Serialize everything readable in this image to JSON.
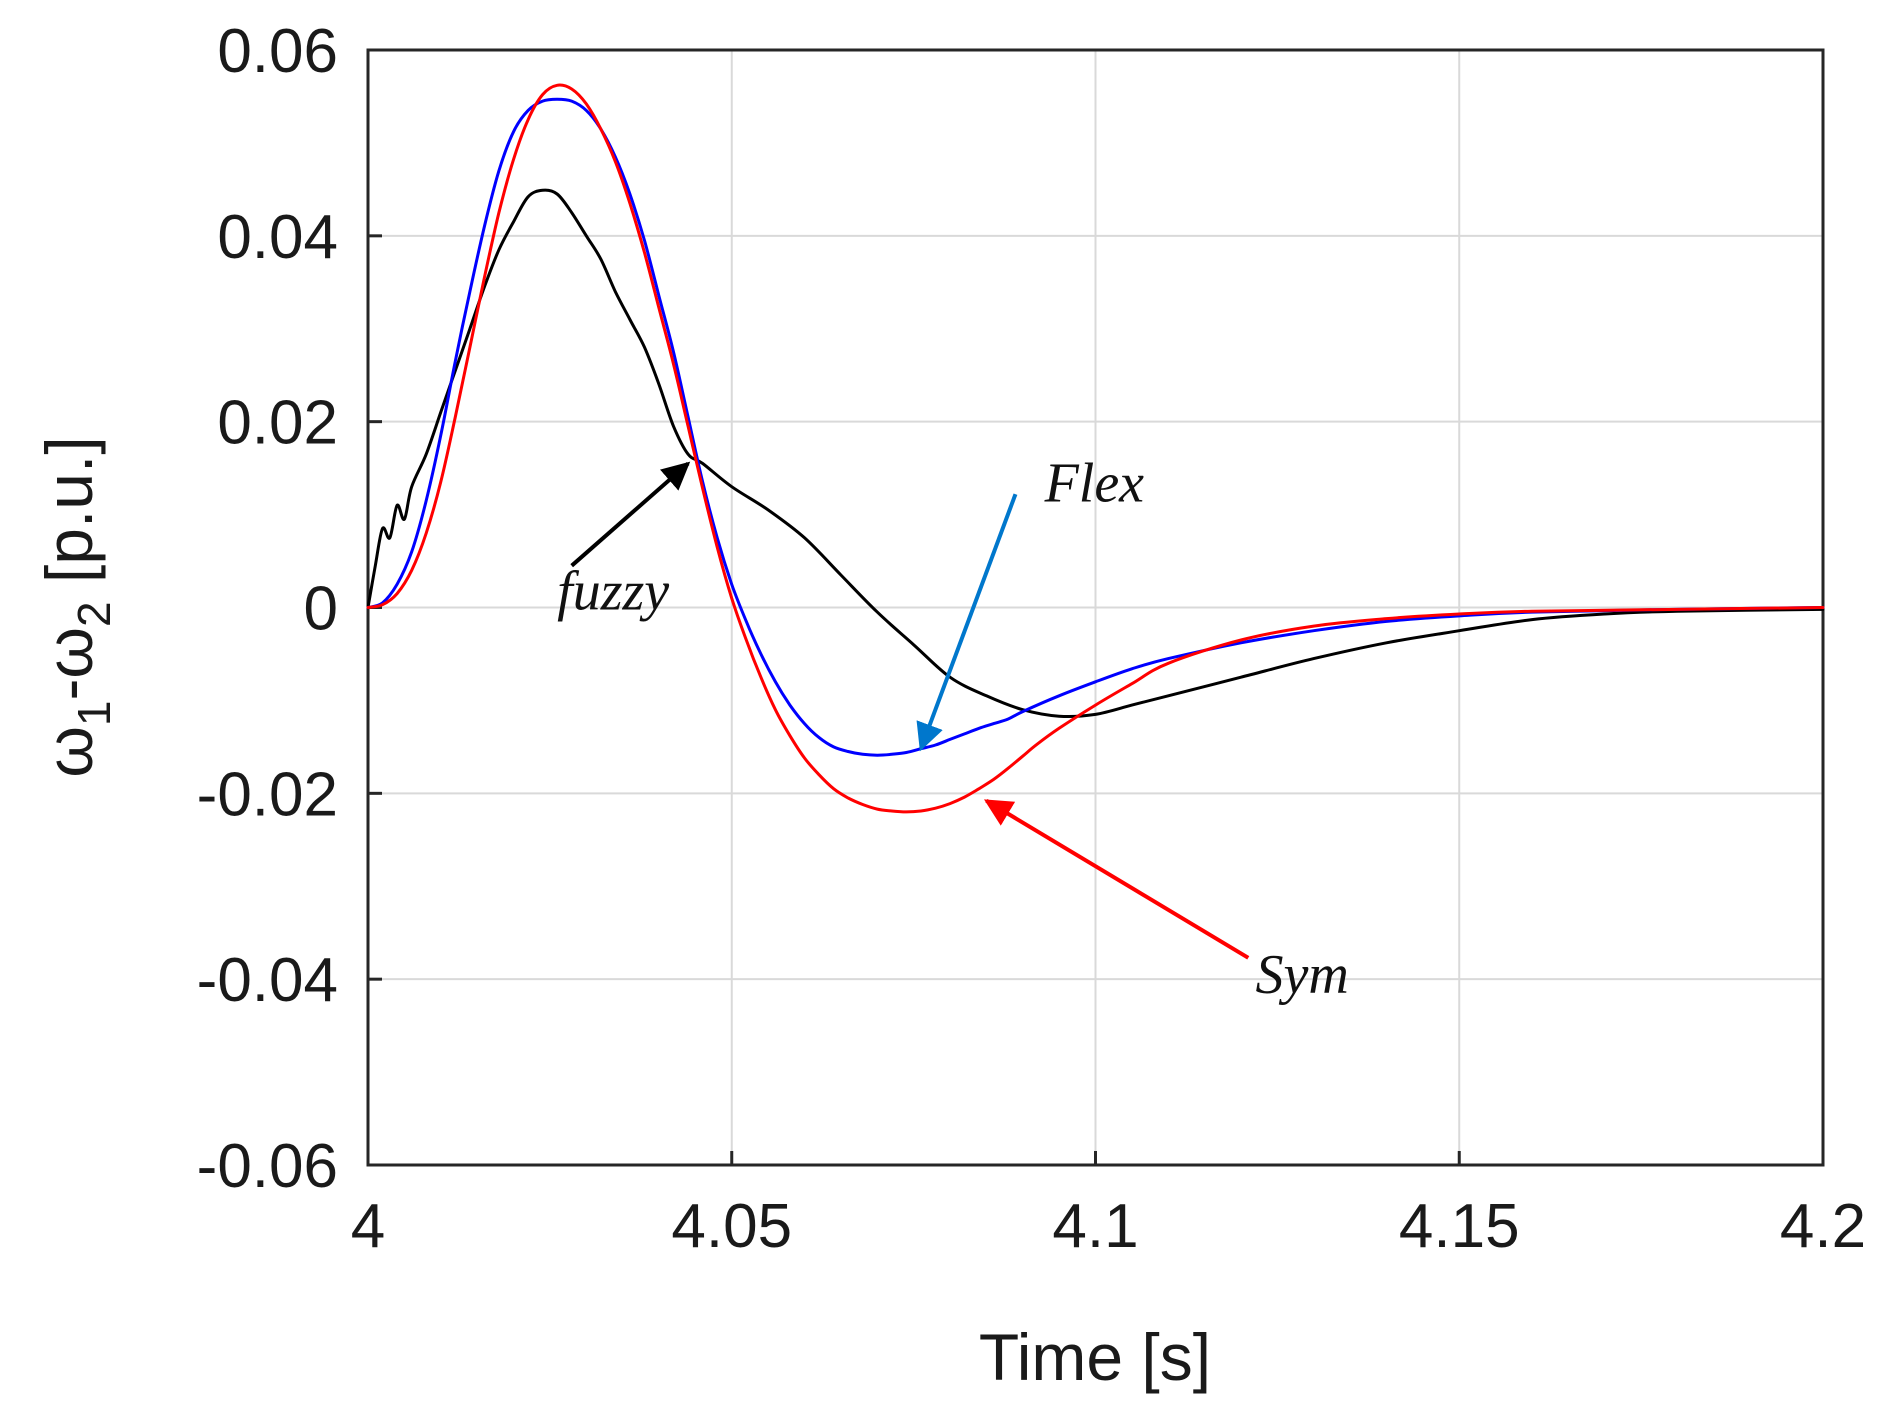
{
  "chart_data": {
    "type": "line",
    "title": "",
    "xlabel": "Time [s]",
    "ylabel": "ω1-ω2 [p.u.]",
    "xlim": [
      4,
      4.2
    ],
    "ylim": [
      -0.06,
      0.06
    ],
    "grid": true,
    "x_ticks": [
      4,
      4.05,
      4.1,
      4.15,
      4.2
    ],
    "x_tick_labels": [
      "4",
      "4.05",
      "4.1",
      "4.15",
      "4.2"
    ],
    "y_ticks": [
      -0.06,
      -0.04,
      -0.02,
      0,
      0.02,
      0.04,
      0.06
    ],
    "y_tick_labels": [
      "-0.06",
      "-0.04",
      "-0.02",
      "0",
      "0.02",
      "0.04",
      "0.06"
    ],
    "series": [
      {
        "name": "fuzzy",
        "color": "#000000",
        "x": [
          4.0,
          4.001,
          4.002,
          4.003,
          4.004,
          4.005,
          4.006,
          4.008,
          4.01,
          4.012,
          4.014,
          4.016,
          4.018,
          4.02,
          4.022,
          4.024,
          4.026,
          4.028,
          4.03,
          4.032,
          4.034,
          4.036,
          4.038,
          4.04,
          4.042,
          4.044,
          4.046,
          4.05,
          4.055,
          4.06,
          4.065,
          4.07,
          4.075,
          4.08,
          4.085,
          4.09,
          4.095,
          4.1,
          4.105,
          4.11,
          4.12,
          4.13,
          4.14,
          4.15,
          4.16,
          4.17,
          4.18,
          4.2
        ],
        "y": [
          0.0,
          0.0045,
          0.0085,
          0.0075,
          0.011,
          0.0095,
          0.013,
          0.0165,
          0.021,
          0.0255,
          0.03,
          0.0345,
          0.0385,
          0.0415,
          0.0442,
          0.0449,
          0.0445,
          0.0425,
          0.04,
          0.0375,
          0.034,
          0.031,
          0.028,
          0.024,
          0.0195,
          0.0165,
          0.0155,
          0.013,
          0.0105,
          0.0075,
          0.0035,
          -0.0005,
          -0.004,
          -0.0075,
          -0.0095,
          -0.011,
          -0.0117,
          -0.0115,
          -0.0105,
          -0.0095,
          -0.0075,
          -0.0055,
          -0.0038,
          -0.0025,
          -0.0013,
          -0.0007,
          -0.0004,
          -0.0002
        ]
      },
      {
        "name": "Flex",
        "color": "#0000ff",
        "x": [
          4.0,
          4.002,
          4.004,
          4.006,
          4.008,
          4.01,
          4.012,
          4.014,
          4.016,
          4.018,
          4.02,
          4.022,
          4.024,
          4.026,
          4.028,
          4.03,
          4.032,
          4.034,
          4.036,
          4.038,
          4.04,
          4.042,
          4.044,
          4.046,
          4.048,
          4.05,
          4.052,
          4.054,
          4.056,
          4.058,
          4.06,
          4.062,
          4.064,
          4.066,
          4.068,
          4.07,
          4.072,
          4.074,
          4.076,
          4.078,
          4.08,
          4.082,
          4.084,
          4.086,
          4.088,
          4.09,
          4.095,
          4.1,
          4.105,
          4.11,
          4.12,
          4.13,
          4.14,
          4.15,
          4.16,
          4.18,
          4.2
        ],
        "y": [
          0.0,
          0.0005,
          0.0025,
          0.006,
          0.0115,
          0.0185,
          0.0265,
          0.034,
          0.041,
          0.047,
          0.0512,
          0.0535,
          0.0545,
          0.0547,
          0.0545,
          0.0535,
          0.0515,
          0.0485,
          0.0445,
          0.0395,
          0.0335,
          0.0275,
          0.0205,
          0.0135,
          0.0075,
          0.0025,
          -0.0015,
          -0.005,
          -0.008,
          -0.0105,
          -0.0125,
          -0.014,
          -0.015,
          -0.0155,
          -0.0158,
          -0.0159,
          -0.0158,
          -0.0156,
          -0.0152,
          -0.0148,
          -0.0142,
          -0.0136,
          -0.013,
          -0.0125,
          -0.012,
          -0.0112,
          -0.0095,
          -0.008,
          -0.0066,
          -0.0055,
          -0.0038,
          -0.0025,
          -0.0015,
          -0.0009,
          -0.0005,
          -0.0002,
          0.0
        ]
      },
      {
        "name": "Sym",
        "color": "#ff0000",
        "x": [
          4.0,
          4.002,
          4.004,
          4.006,
          4.008,
          4.01,
          4.012,
          4.014,
          4.016,
          4.018,
          4.02,
          4.022,
          4.024,
          4.026,
          4.028,
          4.03,
          4.032,
          4.034,
          4.036,
          4.038,
          4.04,
          4.042,
          4.044,
          4.046,
          4.048,
          4.05,
          4.052,
          4.054,
          4.056,
          4.058,
          4.06,
          4.062,
          4.064,
          4.066,
          4.068,
          4.07,
          4.072,
          4.074,
          4.076,
          4.078,
          4.08,
          4.082,
          4.084,
          4.086,
          4.088,
          4.09,
          4.092,
          4.095,
          4.1,
          4.105,
          4.11,
          4.12,
          4.13,
          4.14,
          4.15,
          4.16,
          4.18,
          4.2
        ],
        "y": [
          0.0,
          0.0003,
          0.0015,
          0.004,
          0.008,
          0.0135,
          0.0205,
          0.028,
          0.0355,
          0.0425,
          0.0482,
          0.0525,
          0.0552,
          0.0562,
          0.0558,
          0.0542,
          0.0515,
          0.048,
          0.0435,
          0.0382,
          0.0322,
          0.0262,
          0.0195,
          0.0128,
          0.0065,
          0.001,
          -0.0035,
          -0.0075,
          -0.011,
          -0.0138,
          -0.0162,
          -0.018,
          -0.0195,
          -0.0205,
          -0.0212,
          -0.0217,
          -0.0219,
          -0.022,
          -0.0219,
          -0.0216,
          -0.0211,
          -0.0204,
          -0.0195,
          -0.0185,
          -0.0173,
          -0.016,
          -0.0147,
          -0.013,
          -0.0105,
          -0.0082,
          -0.006,
          -0.0035,
          -0.002,
          -0.0012,
          -0.0007,
          -0.0004,
          -0.0002,
          0.0
        ]
      }
    ],
    "annotations": [
      {
        "text": "fuzzy",
        "label_at": [
          4.026,
          -0.0002
        ],
        "arrow_from": [
          4.028,
          0.0045
        ],
        "arrow_to": [
          4.044,
          0.0155
        ],
        "color": "#000000"
      },
      {
        "text": "Flex",
        "label_at": [
          4.093,
          0.0114
        ],
        "arrow_from": [
          4.089,
          0.0122
        ],
        "arrow_to": [
          4.076,
          -0.0152
        ],
        "color": "#0077cc"
      },
      {
        "text": "Sym",
        "label_at": [
          4.122,
          -0.0415
        ],
        "arrow_from": [
          4.121,
          -0.0377
        ],
        "arrow_to": [
          4.085,
          -0.0208
        ],
        "color": "#ff0000"
      }
    ]
  }
}
